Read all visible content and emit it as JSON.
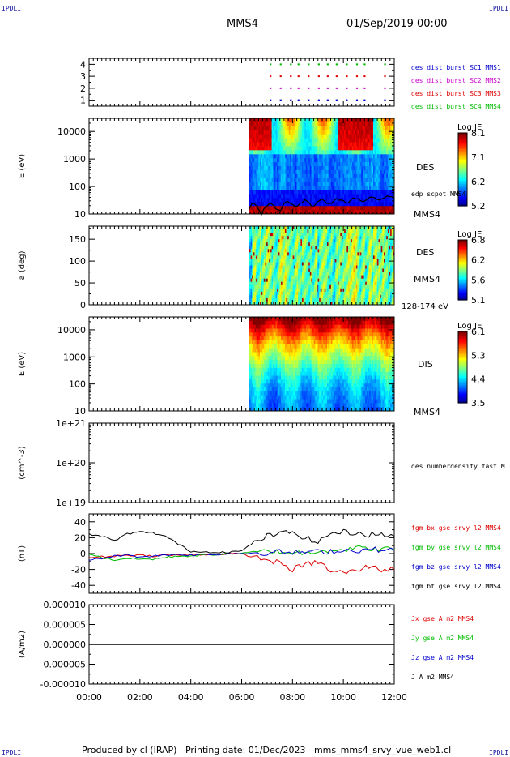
{
  "corner_labels": {
    "top_left": "IPDLI",
    "top_right": "IPDLI",
    "bottom_left": "IPDLI",
    "bottom_right": "IPDLI"
  },
  "header": {
    "spacecraft": "MMS4",
    "date": "01/Sep/2019 00:00"
  },
  "footer": "Produced by cl (IRAP)   Printing date: 01/Dec/2023   mms_mms4_srvy_vue_web1.cl",
  "colors": {
    "mms1": "#0000cc",
    "mms2": "#cc00cc",
    "mms3": "#dd0000",
    "mms4": "#00bb00",
    "black": "#000000"
  },
  "chart_data": [
    {
      "type": "scatter",
      "id": "burst",
      "ylim": [
        0.5,
        4.5
      ],
      "yticks": [
        "1",
        "2",
        "3",
        "4"
      ],
      "legend": [
        {
          "label": "des dist burst SC1 MMS1",
          "color": "#0000cc",
          "y": 1
        },
        {
          "label": "des dist burst SC2 MMS2",
          "color": "#cc00cc",
          "y": 2
        },
        {
          "label": "des dist burst SC3 MMS3",
          "color": "#dd0000",
          "y": 3
        },
        {
          "label": "des dist burst SC4 MMS4",
          "color": "#00bb00",
          "y": 4
        }
      ],
      "burst_times_h": [
        7.1,
        7.5,
        7.9,
        8.2,
        8.6,
        9.0,
        9.35,
        9.7,
        10.1,
        10.5,
        10.8,
        11.6
      ]
    },
    {
      "type": "heatmap",
      "id": "des_energy",
      "ylabel": "E (eV)",
      "ylog": true,
      "ylim": [
        10,
        30000
      ],
      "yticks": [
        "10",
        "100",
        "1000",
        "10000"
      ],
      "colorbar": {
        "title": "Log JE",
        "ticks": [
          "8.1",
          "7.1",
          "6.2",
          "5.2"
        ],
        "min": 5.2,
        "max": 8.1
      },
      "side_labels": [
        "DES",
        "edp scpot MMS4",
        "MMS4"
      ],
      "data_start_h": 6.3,
      "data_end_h": 12.0
    },
    {
      "type": "heatmap",
      "id": "des_pitch",
      "ylabel": "a (deg)",
      "ylim": [
        0,
        180
      ],
      "yticks": [
        "0",
        "50",
        "100",
        "150"
      ],
      "colorbar": {
        "title": "Log JE",
        "ticks": [
          "6.8",
          "6.2",
          "5.6",
          "5.1"
        ],
        "min": 5.1,
        "max": 6.8
      },
      "side_labels": [
        "DES",
        "MMS4",
        "128-174 eV"
      ],
      "data_start_h": 6.3,
      "data_end_h": 12.0
    },
    {
      "type": "heatmap",
      "id": "dis_energy",
      "ylabel": "E (eV)",
      "ylog": true,
      "ylim": [
        10,
        30000
      ],
      "yticks": [
        "10",
        "100",
        "1000",
        "10000"
      ],
      "colorbar": {
        "title": "Log JE",
        "ticks": [
          "6.1",
          "5.3",
          "4.4",
          "3.5"
        ],
        "min": 3.5,
        "max": 6.1
      },
      "side_labels": [
        "DIS",
        "MMS4"
      ],
      "data_start_h": 6.3,
      "data_end_h": 12.0
    },
    {
      "type": "line",
      "id": "density",
      "ylabel": "(cm^-3)",
      "ylog": true,
      "ylim": [
        1e+19,
        1e+21
      ],
      "yticks": [
        "1e+19",
        "1e+20",
        "1e+21"
      ],
      "legend": [
        {
          "label": "des numberdensity fast M",
          "color": "#000000"
        }
      ]
    },
    {
      "type": "line",
      "id": "fgm",
      "ylabel": "(nT)",
      "ylim": [
        -50,
        50
      ],
      "yticks": [
        "-40",
        "-20",
        "0",
        "20",
        "40"
      ],
      "legend": [
        {
          "label": "fgm bx gse srvy l2 MMS4",
          "color": "#dd0000"
        },
        {
          "label": "fgm by gse srvy l2 MMS4",
          "color": "#00bb00"
        },
        {
          "label": "fgm bz gse srvy l2 MMS4",
          "color": "#0000cc"
        },
        {
          "label": "fgm bt gse srvy l2 MMS4",
          "color": "#000000"
        }
      ],
      "x": [
        0,
        0.5,
        1.0,
        1.5,
        2.0,
        2.5,
        3.0,
        3.5,
        4.0,
        4.5,
        5.0,
        5.5,
        6.0,
        6.5,
        7.0,
        7.5,
        8.0,
        8.5,
        9.0,
        9.5,
        10.0,
        10.5,
        11.0,
        11.5,
        12.0
      ],
      "series": [
        {
          "name": "fgm bx gse srvy l2 MMS4",
          "color": "#dd0000",
          "values": [
            -5,
            -4,
            -3,
            -2,
            -2,
            -3,
            -2,
            -2,
            -2,
            -1,
            -1,
            0,
            -1,
            -4,
            -8,
            -12,
            -20,
            -14,
            -10,
            -22,
            -24,
            -22,
            -16,
            -20,
            -20
          ]
        },
        {
          "name": "fgm by gse srvy l2 MMS4",
          "color": "#00bb00",
          "values": [
            0,
            -5,
            -8,
            -6,
            -7,
            -7,
            -5,
            -3,
            -3,
            -2,
            -1,
            0,
            0,
            2,
            3,
            2,
            2,
            0,
            4,
            5,
            5,
            7,
            6,
            6,
            5
          ]
        },
        {
          "name": "fgm bz gse srvy l2 MMS4",
          "color": "#0000cc",
          "values": [
            -8,
            -6,
            -3,
            -2,
            -4,
            -3,
            -2,
            -1,
            -2,
            -1,
            -1,
            0,
            0,
            1,
            1,
            2,
            1,
            2,
            2,
            3,
            4,
            4,
            5,
            5,
            4
          ]
        },
        {
          "name": "fgm bt gse srvy l2 MMS4",
          "color": "#000000",
          "values": [
            24,
            22,
            16,
            25,
            27,
            26,
            22,
            12,
            3,
            2,
            2,
            2,
            3,
            15,
            22,
            25,
            27,
            20,
            14,
            26,
            27,
            26,
            24,
            24,
            22
          ]
        }
      ]
    },
    {
      "type": "line",
      "id": "current",
      "ylabel": "(A/m2)",
      "ylim": [
        -1e-05,
        1e-05
      ],
      "yticks": [
        "-0.000010",
        "-0.000005",
        "0.000000",
        "0.000005",
        "0.000010"
      ],
      "xlim": [
        0,
        12
      ],
      "xticks": [
        "00:00",
        "02:00",
        "04:00",
        "06:00",
        "08:00",
        "10:00",
        "12:00"
      ],
      "legend": [
        {
          "label": "Jx gse A m2 MMS4",
          "color": "#dd0000"
        },
        {
          "label": "Jy gse A m2 MMS4",
          "color": "#00bb00"
        },
        {
          "label": "Jz gse A m2 MMS4",
          "color": "#0000cc"
        },
        {
          "label": "J A m2 MMS4",
          "color": "#000000"
        }
      ],
      "values_note_series": [
        {
          "name": "J A m2 MMS4",
          "values": [
            0,
            0
          ]
        }
      ]
    }
  ]
}
